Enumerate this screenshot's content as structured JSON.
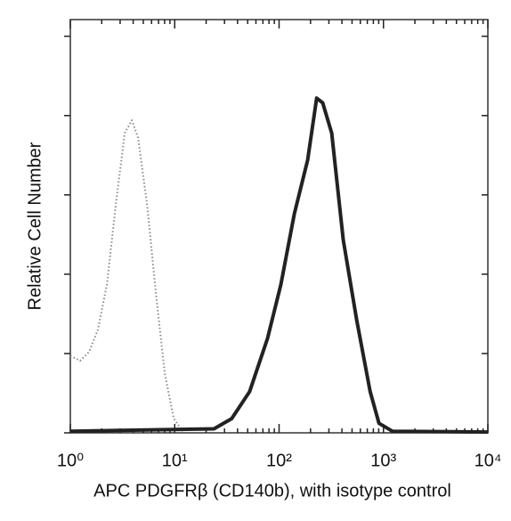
{
  "chart_data": {
    "type": "line",
    "x_label": "APC PDGFRβ (CD140b), with isotype control",
    "y_label": "Relative Cell Number",
    "x_scale": "log",
    "xlim": [
      1,
      10000
    ],
    "xticks": [
      {
        "value": 1,
        "label": "10⁰"
      },
      {
        "value": 10,
        "label": "10¹"
      },
      {
        "value": 100,
        "label": "10²"
      },
      {
        "value": 1000,
        "label": "10³"
      },
      {
        "value": 10000,
        "label": "10⁴"
      }
    ],
    "ylim": [
      0,
      5.21
    ],
    "yticks": [
      0,
      1,
      2,
      3,
      4,
      5
    ],
    "series": [
      {
        "color": "#8a8a8a",
        "dashed": true,
        "x": [
          1,
          1.24,
          1.51,
          1.84,
          2.24,
          2.73,
          3.32,
          3.89,
          4.46,
          5.43,
          6.61,
          8.05,
          9.8,
          11.9
        ],
        "values": [
          0.97,
          0.91,
          1.02,
          1.3,
          1.87,
          2.88,
          3.78,
          3.94,
          3.72,
          2.88,
          1.75,
          0.74,
          0.18,
          0.02
        ]
      },
      {
        "color": "#222222",
        "dashed": false,
        "x": [
          1,
          23.8,
          35.2,
          52.2,
          77.4,
          104,
          140,
          188,
          229,
          262,
          319,
          412,
          554,
          745,
          906,
          1217,
          10000
        ],
        "values": [
          0.02,
          0.05,
          0.18,
          0.52,
          1.19,
          1.87,
          2.76,
          3.44,
          4.22,
          4.16,
          3.78,
          2.43,
          1.42,
          0.52,
          0.12,
          0.02,
          0.01
        ]
      }
    ]
  }
}
